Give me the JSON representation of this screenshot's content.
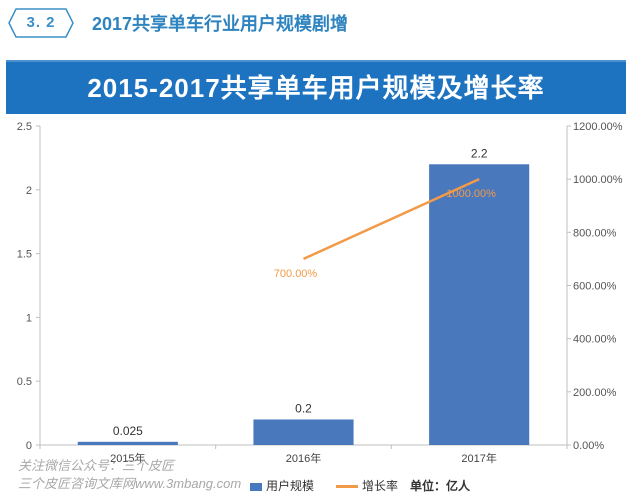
{
  "section": {
    "number": "3. 2",
    "title": "2017共享单车行业用户规模剧增"
  },
  "banner": {
    "title": "2015-2017共享单车用户规模及增长率"
  },
  "legend": {
    "bar_label": "用户规模",
    "line_label": "增长率",
    "unit_label": "单位：亿人"
  },
  "watermark": {
    "line1": "关注微信公众号：三个皮匠",
    "line2": "三个皮匠咨询文库网www.3mbang.com"
  },
  "colors": {
    "bar": "#4a78bd",
    "line": "#f29a48",
    "banner": "#1d73c0",
    "section_accent": "#2f84c0"
  },
  "chart_data": {
    "type": "bar",
    "title": "2015-2017共享单车用户规模及增长率",
    "categories": [
      "2015年",
      "2016年",
      "2017年"
    ],
    "series": [
      {
        "name": "用户规模",
        "type": "bar",
        "axis": "left",
        "values": [
          0.025,
          0.2,
          2.2
        ],
        "labels": [
          "0.025",
          "0.2",
          "2.2"
        ]
      },
      {
        "name": "增长率",
        "type": "line",
        "axis": "right",
        "values": [
          null,
          700,
          1000
        ],
        "labels": [
          "",
          "700.00%",
          "1000.00%"
        ]
      }
    ],
    "ylim": [
      0,
      2.5
    ],
    "y_ticks": [
      "0",
      "0.5",
      "1",
      "1.5",
      "2",
      "2.5"
    ],
    "y2lim": [
      0,
      1200
    ],
    "y2_ticks": [
      "0.00%",
      "200.00%",
      "400.00%",
      "600.00%",
      "800.00%",
      "1000.00%",
      "1200.00%"
    ],
    "unit": "单位：亿人",
    "legend_position": "bottom"
  }
}
